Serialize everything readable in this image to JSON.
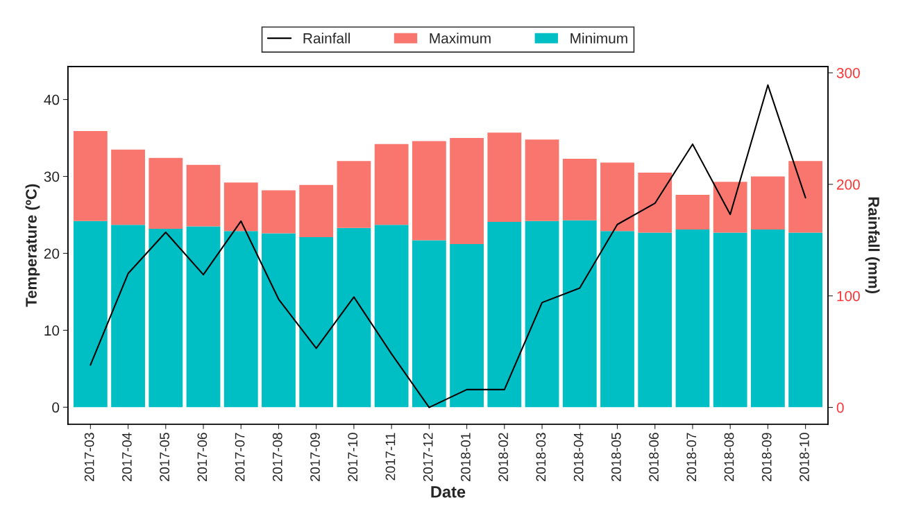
{
  "chart_data": {
    "type": "bar",
    "stacked": true,
    "xlabel": "Date",
    "ylabel": "Temperature (ºC)",
    "y2label": "Rainfall (mm)",
    "categories": [
      "2017-03",
      "2017-04",
      "2017-05",
      "2017-06",
      "2017-07",
      "2017-08",
      "2017-09",
      "2017-10",
      "2017-11",
      "2017-12",
      "2018-01",
      "2018-02",
      "2018-03",
      "2018-04",
      "2018-05",
      "2018-06",
      "2018-07",
      "2018-08",
      "2018-09",
      "2018-10"
    ],
    "series": [
      {
        "name": "Rainfall",
        "type": "line",
        "axis": "y2",
        "color": "#000000",
        "values": [
          38,
          120,
          157,
          119,
          167,
          97,
          53,
          99,
          48,
          0,
          16,
          16,
          94,
          107,
          164,
          183,
          236,
          173,
          289,
          188
        ]
      },
      {
        "name": "Minimum",
        "color": "#00bfc4",
        "values": [
          24.2,
          23.7,
          23.2,
          23.5,
          22.9,
          22.6,
          22.1,
          23.3,
          23.7,
          21.7,
          21.2,
          24.1,
          24.2,
          24.3,
          22.9,
          22.7,
          23.1,
          22.7,
          23.1,
          22.7
        ]
      },
      {
        "name": "Maximum",
        "color": "#f8766d",
        "values": [
          11.7,
          9.8,
          9.2,
          8.0,
          6.3,
          5.6,
          6.8,
          8.7,
          10.5,
          12.9,
          13.8,
          11.6,
          10.6,
          8.0,
          8.9,
          7.8,
          4.5,
          6.6,
          6.9,
          9.3
        ]
      }
    ],
    "ylim": [
      -2.2,
      44.3
    ],
    "yticks": [
      0,
      10,
      20,
      30,
      40
    ],
    "y2lim": [
      -15,
      305.7
    ],
    "y2ticks": [
      0,
      100,
      200,
      300
    ],
    "grid": false,
    "legend": "top"
  }
}
